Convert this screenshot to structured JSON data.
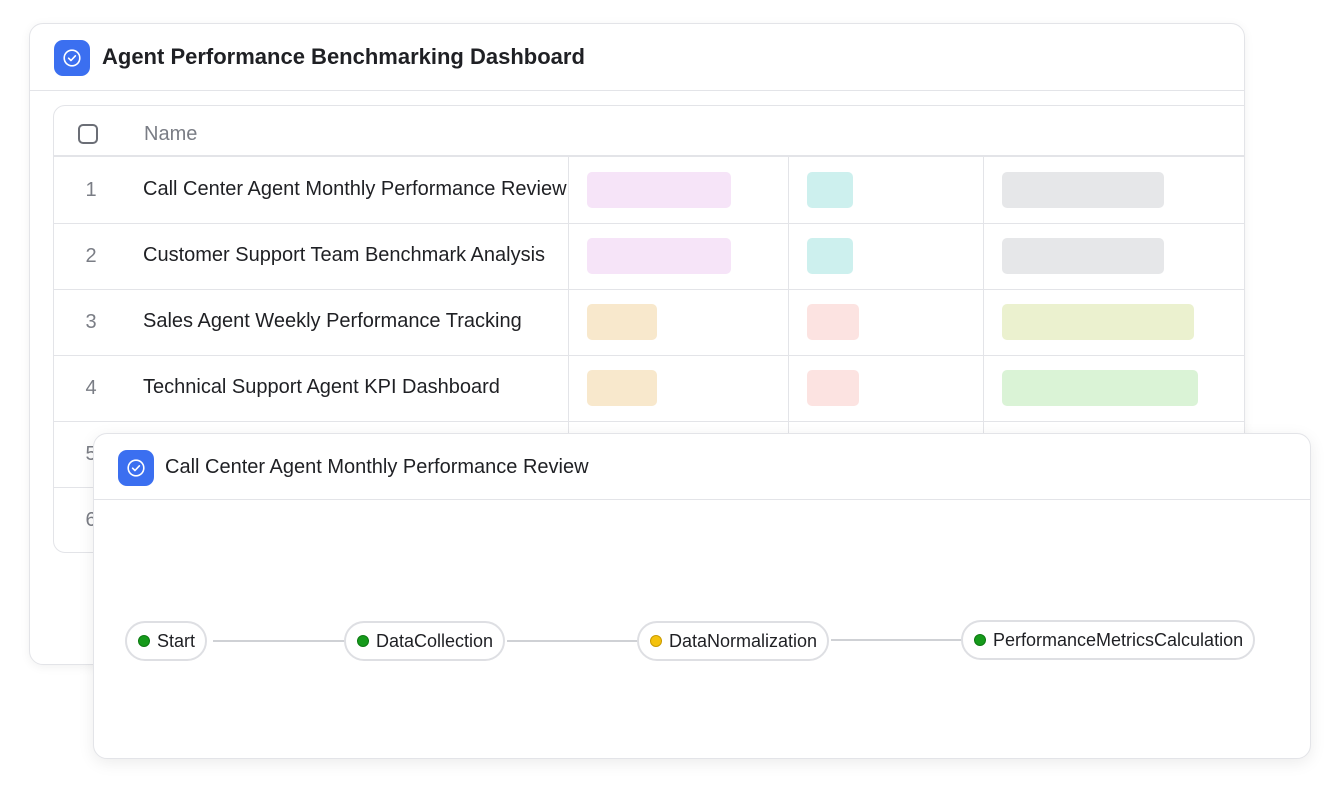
{
  "main": {
    "title": "Agent Performance Benchmarking Dashboard",
    "table": {
      "header_name": "Name",
      "rows": [
        {
          "num": "1",
          "name": "Call Center Agent Monthly Performance Review"
        },
        {
          "num": "2",
          "name": "Customer Support Team Benchmark Analysis"
        },
        {
          "num": "3",
          "name": "Sales Agent Weekly Performance Tracking"
        },
        {
          "num": "4",
          "name": "Technical Support Agent KPI Dashboard"
        },
        {
          "num": "5",
          "name": ""
        },
        {
          "num": "6",
          "name": ""
        }
      ],
      "tag_colors": [
        "#f6e4f8",
        "#cdf0ee",
        "#e6e7e9",
        "#f8e8cc",
        "#fce3e1",
        "#ebf1cf",
        "#daf3d6"
      ]
    }
  },
  "detail": {
    "title": "Call Center Agent Monthly Performance Review",
    "workflow": {
      "nodes": [
        {
          "label": "Start",
          "status": "complete",
          "color": "#169a1b"
        },
        {
          "label": "DataCollection",
          "status": "complete",
          "color": "#169a1b"
        },
        {
          "label": "DataNormalization",
          "status": "in-progress",
          "color": "#f4c20d"
        },
        {
          "label": "PerformanceMetricsCalculation",
          "status": "complete",
          "color": "#169a1b"
        }
      ]
    }
  },
  "icons": {
    "app": "check-circle-icon"
  },
  "colors": {
    "accent": "#3b6ff0"
  }
}
